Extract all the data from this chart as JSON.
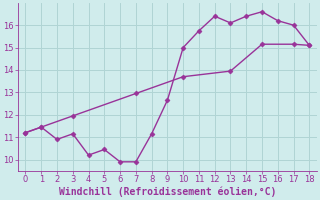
{
  "xlabel": "Windchill (Refroidissement éolien,°C)",
  "background_color": "#d0ecec",
  "grid_color": "#b0d4d4",
  "line_color": "#993399",
  "line1_x": [
    0,
    1,
    3,
    7,
    10,
    13,
    15,
    17,
    18
  ],
  "line1_y": [
    11.2,
    11.45,
    11.95,
    12.95,
    13.7,
    13.95,
    15.15,
    15.15,
    15.1
  ],
  "line2_x": [
    0,
    1,
    2,
    3,
    4,
    5,
    6,
    7,
    8,
    9,
    10,
    11,
    12,
    13,
    14,
    15,
    16,
    17,
    18
  ],
  "line2_y": [
    11.2,
    11.45,
    10.9,
    11.15,
    10.2,
    10.45,
    9.9,
    9.9,
    11.15,
    12.65,
    15.0,
    15.75,
    16.4,
    16.1,
    16.4,
    16.6,
    16.2,
    16.0,
    15.1
  ],
  "xlim": [
    -0.5,
    18.5
  ],
  "ylim": [
    9.5,
    17.0
  ],
  "xticks": [
    0,
    1,
    2,
    3,
    4,
    5,
    6,
    7,
    8,
    9,
    10,
    11,
    12,
    13,
    14,
    15,
    16,
    17,
    18
  ],
  "yticks": [
    10,
    11,
    12,
    13,
    14,
    15,
    16
  ],
  "marker": "D",
  "markersize": 2.5,
  "linewidth": 1.0,
  "tick_fontsize": 6,
  "xlabel_fontsize": 7
}
